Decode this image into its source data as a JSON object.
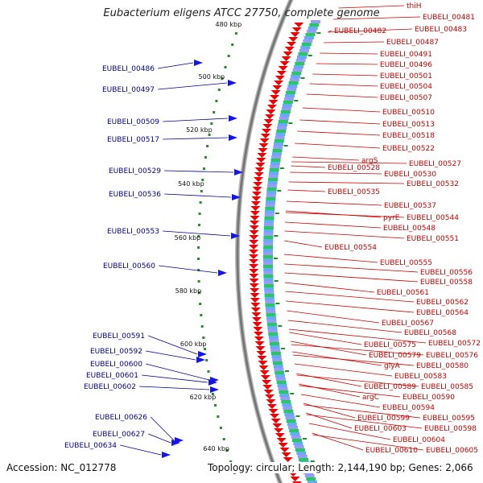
{
  "title": "Eubacterium eligens ATCC 27750, complete genome",
  "accession": "Accession: NC_012778",
  "topology": "Topology: circular; Length: 2,144,190 bp; Genes: 2,066",
  "colors": {
    "right_label": "#cc0000",
    "left_label": "#000099",
    "backbone": "#777777",
    "arrow": "#ee0000",
    "marker": "#2a8a2a",
    "blue_arrow": "#1414ee"
  },
  "scale_ticks": [
    "480 kbp",
    "500 kbp",
    "520 kbp",
    "540 kbp",
    "560 kbp",
    "580 kbp",
    "600 kbp",
    "620 kbp",
    "640 kbp"
  ],
  "right_genes": [
    "thiH",
    "EUBELI_00481",
    "EUBELI_00482",
    "EUBELI_00483",
    "EUBELI_00487",
    "EUBELI_00491",
    "EUBELI_00496",
    "EUBELI_00501",
    "EUBELI_00504",
    "EUBELI_00507",
    "EUBELI_00510",
    "EUBELI_00513",
    "EUBELI_00518",
    "EUBELI_00522",
    "argS",
    "EUBELI_00527",
    "EUBELI_00528",
    "EUBELI_00530",
    "EUBELI_00532",
    "EUBELI_00535",
    "EUBELI_00537",
    "pyrE",
    "EUBELI_00544",
    "EUBELI_00548",
    "EUBELI_00551",
    "EUBELI_00554",
    "EUBELI_00555",
    "EUBELI_00556",
    "EUBELI_00558",
    "EUBELI_00561",
    "EUBELI_00562",
    "EUBELI_00564",
    "EUBELI_00567",
    "EUBELI_00568",
    "EUBELI_00572",
    "EUBELI_00575",
    "EUBELI_00579",
    "EUBELI_00576",
    "glyA",
    "EUBELI_00580",
    "EUBELI_00583",
    "EUBELI_00589",
    "EUBELI_00585",
    "argC",
    "EUBELI_00590",
    "EUBELI_00594",
    "EUBELI_00599",
    "EUBELI_00595",
    "EUBELI_00603",
    "EUBELI_00598",
    "EUBELI_00604",
    "EUBELI_00610",
    "EUBELI_00605"
  ],
  "left_genes": [
    "EUBELI_00486",
    "EUBELI_00497",
    "EUBELI_00509",
    "EUBELI_00517",
    "EUBELI_00529",
    "EUBELI_00536",
    "EUBELI_00553",
    "EUBELI_00560",
    "EUBELI_00591",
    "EUBELI_00592",
    "EUBELI_00600",
    "EUBELI_00601",
    "EUBELI_00602",
    "EUBELI_00626",
    "EUBELI_00627",
    "EUBELI_00634"
  ]
}
